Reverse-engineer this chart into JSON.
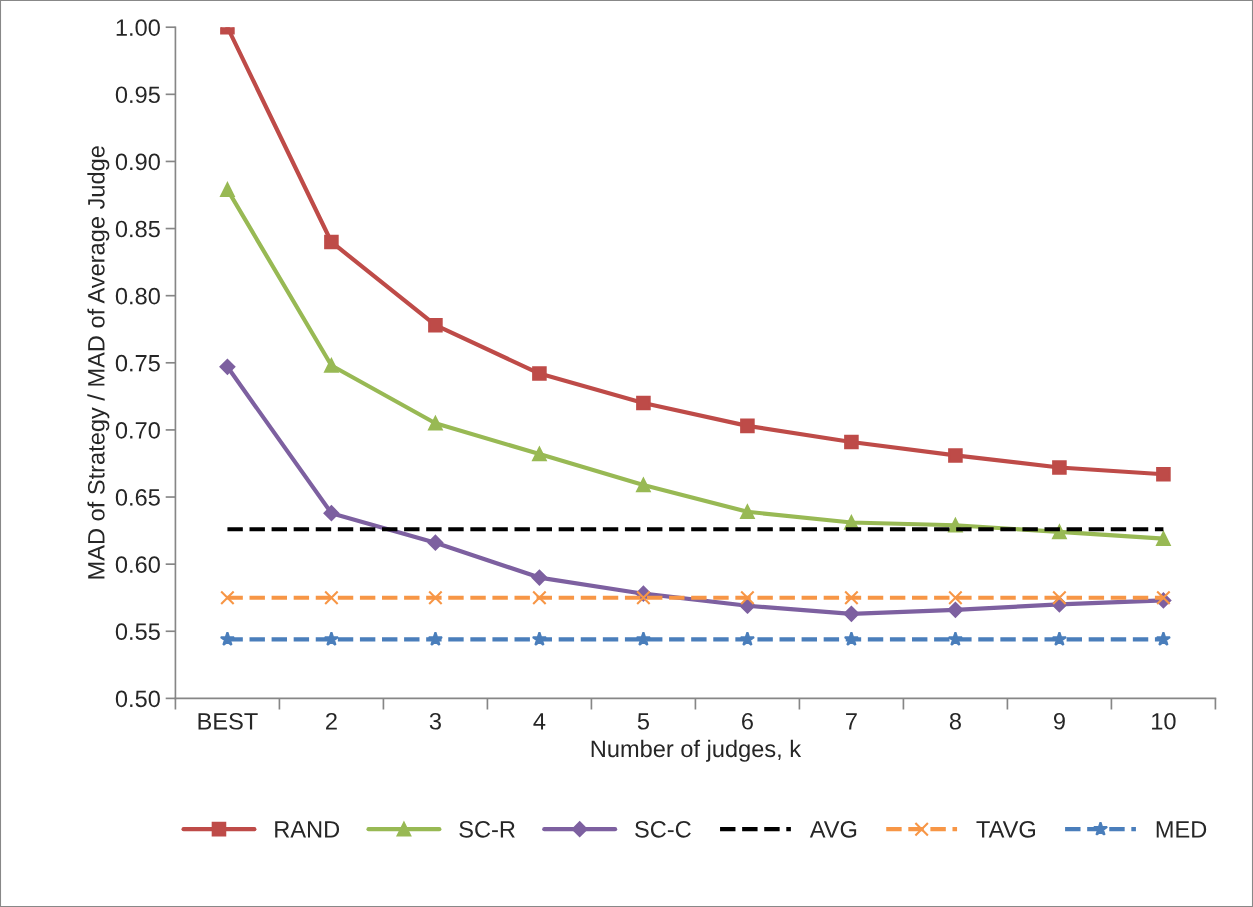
{
  "chart_data": {
    "type": "line",
    "xlabel": "Number of judges, k",
    "ylabel": "MAD of Strategy / MAD of Average Judge",
    "categories": [
      "BEST",
      "2",
      "3",
      "4",
      "5",
      "6",
      "7",
      "8",
      "9",
      "10"
    ],
    "series": [
      {
        "name": "RAND",
        "color": "#be4b48",
        "marker": "square",
        "line_style": "solid",
        "values": [
          1.0,
          0.84,
          0.778,
          0.742,
          0.72,
          0.703,
          0.691,
          0.681,
          0.672,
          0.667
        ]
      },
      {
        "name": "SC-R",
        "color": "#98b954",
        "marker": "triangle",
        "line_style": "solid",
        "values": [
          0.879,
          0.748,
          0.705,
          0.682,
          0.659,
          0.639,
          0.631,
          0.629,
          0.624,
          0.619
        ]
      },
      {
        "name": "SC-C",
        "color": "#7d60a0",
        "marker": "diamond",
        "line_style": "solid",
        "values": [
          0.747,
          0.638,
          0.616,
          0.59,
          0.578,
          0.569,
          0.563,
          0.566,
          0.57,
          0.573
        ]
      },
      {
        "name": "AVG",
        "color": "#000000",
        "marker": "none",
        "line_style": "dashed",
        "values": [
          0.626,
          0.626,
          0.626,
          0.626,
          0.626,
          0.626,
          0.626,
          0.626,
          0.626,
          0.626
        ]
      },
      {
        "name": "TAVG",
        "color": "#f79646",
        "marker": "cross",
        "line_style": "dashed",
        "values": [
          0.575,
          0.575,
          0.575,
          0.575,
          0.575,
          0.575,
          0.575,
          0.575,
          0.575,
          0.575
        ]
      },
      {
        "name": "MED",
        "color": "#4a7ebb",
        "marker": "star",
        "line_style": "dashed",
        "values": [
          0.544,
          0.544,
          0.544,
          0.544,
          0.544,
          0.544,
          0.544,
          0.544,
          0.544,
          0.544
        ]
      }
    ],
    "ylim": [
      0.5,
      1.0
    ],
    "yticks": [
      {
        "value": 0.5,
        "label": "0.50"
      },
      {
        "value": 0.55,
        "label": "0.55"
      },
      {
        "value": 0.6,
        "label": "0.60"
      },
      {
        "value": 0.65,
        "label": "0.65"
      },
      {
        "value": 0.7,
        "label": "0.70"
      },
      {
        "value": 0.75,
        "label": "0.75"
      },
      {
        "value": 0.8,
        "label": "0.80"
      },
      {
        "value": 0.85,
        "label": "0.85"
      },
      {
        "value": 0.9,
        "label": "0.90"
      },
      {
        "value": 0.95,
        "label": "0.95"
      },
      {
        "value": 1.0,
        "label": "1.00"
      }
    ],
    "grid": false,
    "legend": "bottom"
  }
}
